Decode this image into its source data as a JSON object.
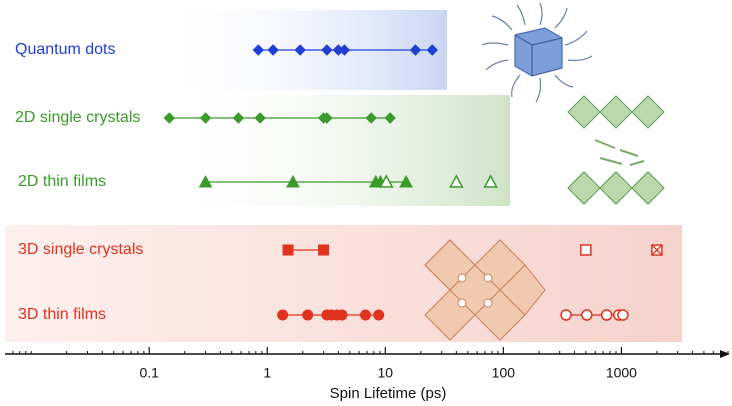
{
  "chart_data": {
    "type": "strip",
    "log_x": true,
    "xlim": [
      0.006,
      8000
    ],
    "xticks": [
      0.1,
      1,
      10,
      100,
      1000
    ],
    "minor_xticks": [
      0.007,
      0.008,
      0.009,
      0.01,
      0.02,
      0.03,
      0.04,
      0.05,
      0.06,
      0.07,
      0.08,
      0.09,
      0.2,
      0.3,
      0.4,
      0.5,
      0.6,
      0.7,
      0.8,
      0.9,
      2,
      3,
      4,
      5,
      6,
      7,
      8,
      9,
      20,
      30,
      40,
      50,
      60,
      70,
      80,
      90,
      200,
      300,
      400,
      500,
      600,
      700,
      800,
      900,
      2000,
      3000,
      4000,
      5000,
      6000,
      7000,
      8000
    ],
    "xlabel": "Spin Lifetime (ps)",
    "series": [
      {
        "name": "Quantum dots",
        "color": "#1f3fd6",
        "marker": "diamond",
        "connect": true,
        "values": [
          0.84,
          1.12,
          1.9,
          3.2,
          4.0,
          4.5,
          18,
          25
        ],
        "open_values": []
      },
      {
        "name": "2D single crystals",
        "color": "#3a9a2a",
        "marker": "diamond",
        "connect": true,
        "values": [
          0.148,
          0.3,
          0.57,
          0.87,
          3.0,
          3.2,
          7.6,
          11
        ],
        "open_values": []
      },
      {
        "name": "2D thin films",
        "color": "#3a9a2a",
        "marker": "triangle",
        "connect": true,
        "values": [
          0.3,
          1.65,
          8.3,
          9.1,
          15
        ],
        "open_values": [
          10.2,
          40,
          78
        ]
      },
      {
        "name": "3D single crystals",
        "color": "#e0321e",
        "marker": "square",
        "connect": true,
        "values": [
          1.5,
          3.0
        ],
        "open_values": [
          500
        ],
        "crossed_values": [
          2000
        ]
      },
      {
        "name": "3D thin films",
        "color": "#e0321e",
        "marker": "circle",
        "connect": true,
        "connect_open": true,
        "values": [
          1.35,
          2.2,
          3.2,
          3.5,
          3.9,
          4.3,
          6.8,
          8.8
        ],
        "open_values": [
          340,
          510,
          750,
          950,
          1030
        ]
      }
    ]
  }
}
